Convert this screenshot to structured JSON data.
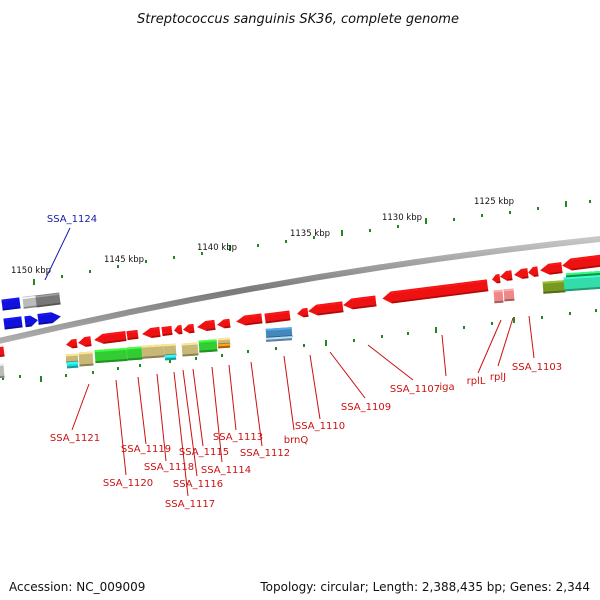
{
  "title": "Streptococcus sanguinis SK36, complete genome",
  "footer": {
    "accession": "Accession: NC_009009",
    "topology": "Topology: circular; Length: 2,388,435 bp; Genes: 2,344"
  },
  "colors": {
    "backbone": "#8a8a8a",
    "gene_red": "#ee1111",
    "gene_blue": "#1111dd",
    "gene_grey": "#777777",
    "gene_green": "#33cc33",
    "gene_tan": "#c8b878",
    "gene_cyan": "#22dddd",
    "gene_aqua": "#33ddaa",
    "gene_olive": "#779922",
    "gene_pink": "#ee8888",
    "gene_steel": "#4488bb",
    "gene_orange": "#ee8811",
    "tick_green": "#228822",
    "label_red": "#cc1111",
    "label_blue": "#1a1aa8"
  },
  "scale_labels": [
    "1150 kbp",
    "1145 kbp",
    "1140 kbp",
    "1135 kbp",
    "1130 kbp",
    "1125 kbp"
  ],
  "gene_labels": [
    {
      "text": "SSA_1124",
      "color": "blue"
    },
    {
      "text": "SSA_1121",
      "color": "red"
    },
    {
      "text": "SSA_1120",
      "color": "red"
    },
    {
      "text": "SSA_1119",
      "color": "red"
    },
    {
      "text": "SSA_1118",
      "color": "red"
    },
    {
      "text": "SSA_1117",
      "color": "red"
    },
    {
      "text": "SSA_1116",
      "color": "red"
    },
    {
      "text": "SSA_1115",
      "color": "red"
    },
    {
      "text": "SSA_1114",
      "color": "red"
    },
    {
      "text": "SSA_1113",
      "color": "red"
    },
    {
      "text": "SSA_1112",
      "color": "red"
    },
    {
      "text": "brnQ",
      "color": "red"
    },
    {
      "text": "SSA_1110",
      "color": "red"
    },
    {
      "text": "SSA_1109",
      "color": "red"
    },
    {
      "text": "SSA_1107",
      "color": "red"
    },
    {
      "text": "iga",
      "color": "red"
    },
    {
      "text": "rplL",
      "color": "red"
    },
    {
      "text": "rplJ",
      "color": "red"
    },
    {
      "text": "SSA_1103",
      "color": "red"
    }
  ]
}
